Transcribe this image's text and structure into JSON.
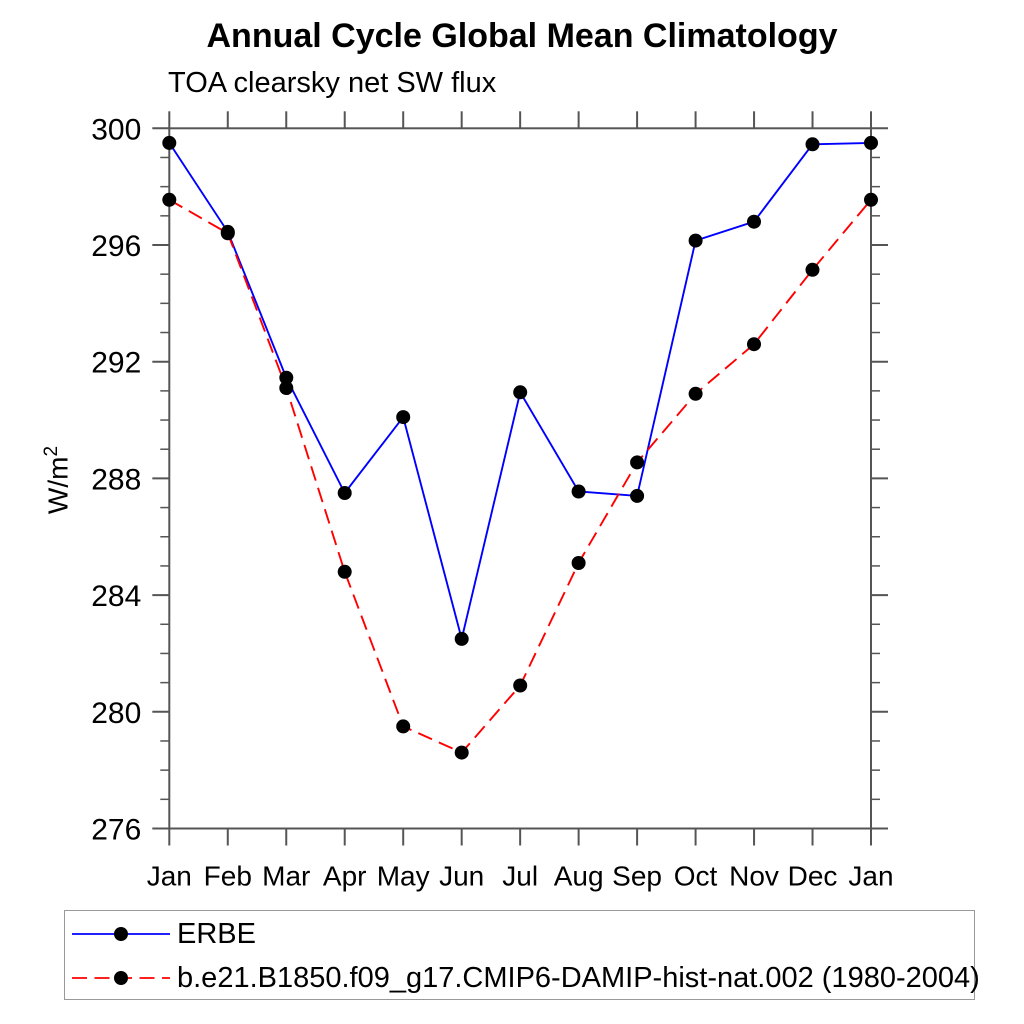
{
  "chart_data": {
    "type": "line",
    "title": "Annual Cycle Global Mean Climatology",
    "subtitle": "TOA clearsky net SW flux",
    "xlabel": "",
    "ylabel": "W/m^2",
    "ylim": [
      276,
      300
    ],
    "yticks_major": [
      276,
      280,
      284,
      288,
      292,
      296,
      300
    ],
    "ytick_minor_step": 1,
    "grid": false,
    "legend_position": "bottom-left-box",
    "categories": [
      "Jan",
      "Feb",
      "Mar",
      "Apr",
      "May",
      "Jun",
      "Jul",
      "Aug",
      "Sep",
      "Oct",
      "Nov",
      "Dec",
      "Jan"
    ],
    "series": [
      {
        "id": "erbe",
        "name": "ERBE",
        "color": "#0000ff",
        "line_style": "solid",
        "marker": "filled-circle",
        "marker_color": "#000000",
        "values": [
          299.5,
          296.45,
          291.45,
          287.5,
          290.1,
          282.5,
          290.95,
          287.55,
          287.4,
          296.15,
          296.8,
          299.45,
          299.5
        ]
      },
      {
        "id": "model",
        "name": "b.e21.B1850.f09_g17.CMIP6-DAMIP-hist-nat.002 (1980-2004)",
        "color": "#ff0000",
        "line_style": "dashed",
        "marker": "filled-circle",
        "marker_color": "#000000",
        "values": [
          297.55,
          296.4,
          291.1,
          284.8,
          279.5,
          278.6,
          280.9,
          285.1,
          288.55,
          290.9,
          292.6,
          295.15,
          297.55
        ]
      }
    ]
  },
  "ylabel": {
    "base": "W/m",
    "exp": "2"
  },
  "colors": {
    "axis": "#555555",
    "text": "#000000",
    "erbe_line": "#0000ff",
    "model_line": "#ff0000",
    "marker": "#000000",
    "legend_border": "#999999"
  }
}
